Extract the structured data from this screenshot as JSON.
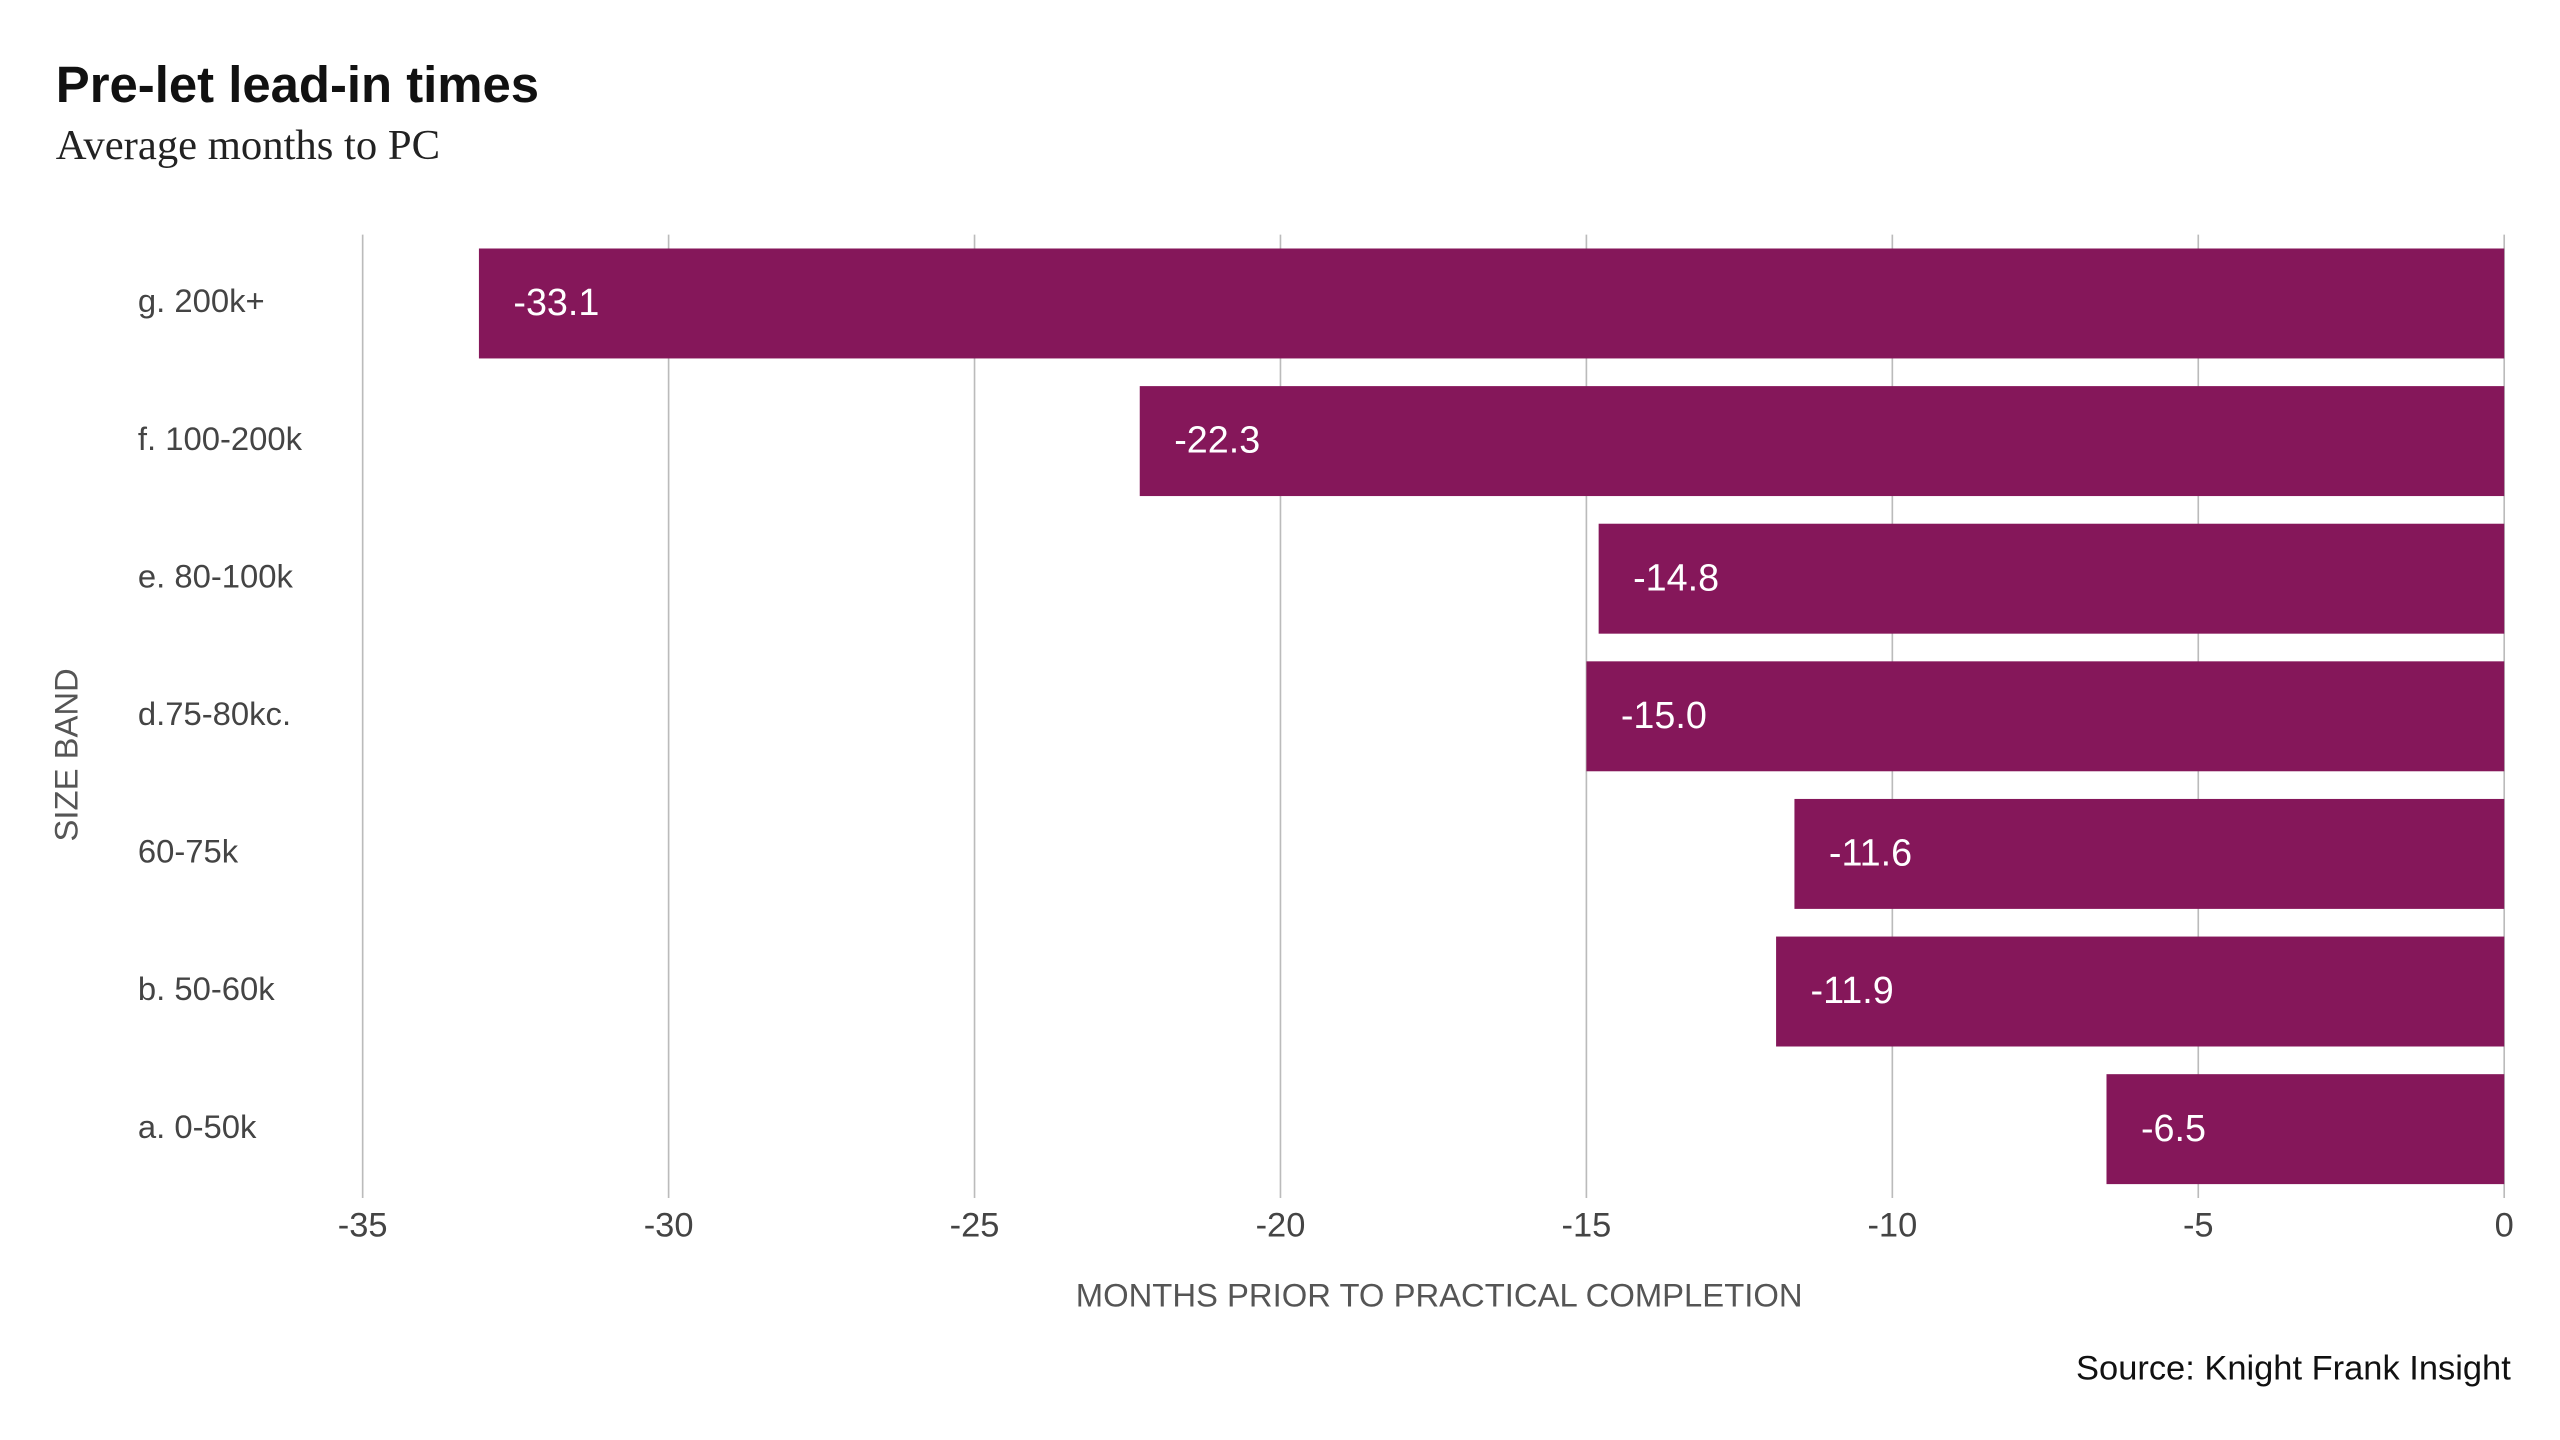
{
  "chart_data": {
    "type": "bar",
    "orientation": "horizontal",
    "title": "Pre-let lead-in times",
    "subtitle": "Average months to PC",
    "x_label": "MONTHS PRIOR TO PRACTICAL COMPLETION",
    "y_label": "SIZE BAND",
    "source": "Source: Knight Frank Insight",
    "categories": [
      "g. 200k+",
      "f. 100-200k",
      "e. 80-100k",
      "d.75-80kc.",
      "60-75k",
      "b. 50-60k",
      "a. 0-50k"
    ],
    "values": [
      -33.1,
      -22.3,
      -14.8,
      -15.0,
      -11.6,
      -11.9,
      -6.5
    ],
    "value_labels": [
      "-33.1",
      "-22.3",
      "-14.8",
      "-15.0",
      "-11.6",
      "-11.9",
      "-6.5"
    ],
    "color": "#85175a",
    "xlim": [
      -35,
      0
    ],
    "xticks": [
      -35,
      -30,
      -25,
      -20,
      -15,
      -10,
      -5,
      0
    ],
    "grid": true
  }
}
